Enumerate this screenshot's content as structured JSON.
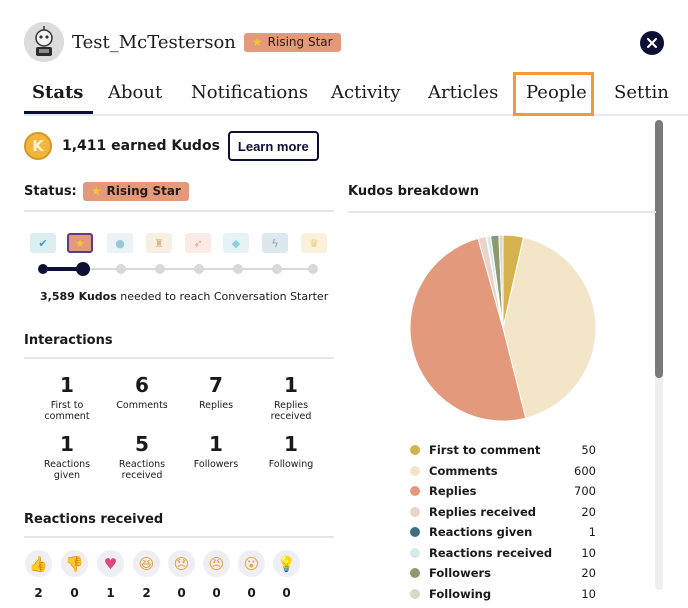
{
  "header": {
    "username": "Test_McTesterson",
    "rank_badge": "Rising Star"
  },
  "tabs": [
    {
      "label": "Stats",
      "active": true
    },
    {
      "label": "About"
    },
    {
      "label": "Notifications"
    },
    {
      "label": "Activity"
    },
    {
      "label": "Articles"
    },
    {
      "label": "People",
      "highlighted": true
    },
    {
      "label": "Settin"
    }
  ],
  "kudos": {
    "coin_letter": "K",
    "earned_text": "1,411 earned Kudos",
    "learn_more": "Learn more"
  },
  "status": {
    "label": "Status:",
    "badge": "Rising Star",
    "needed_count": "3,589 Kudos",
    "needed_rest": " needed to reach Conversation Starter",
    "progress_fraction": 0.167,
    "rank_icon_names": [
      "check-badge-icon",
      "star-badge-icon",
      "balloon-icon",
      "trophy-icon",
      "rocket-icon",
      "diamond-icon",
      "lightning-icon",
      "crown-icon"
    ]
  },
  "interactions": {
    "title": "Interactions",
    "stats": [
      {
        "num": "1",
        "label": "First to comment"
      },
      {
        "num": "6",
        "label": "Comments"
      },
      {
        "num": "7",
        "label": "Replies"
      },
      {
        "num": "1",
        "label": "Replies received"
      },
      {
        "num": "1",
        "label": "Reactions given"
      },
      {
        "num": "5",
        "label": "Reactions received"
      },
      {
        "num": "1",
        "label": "Followers"
      },
      {
        "num": "1",
        "label": "Following"
      }
    ]
  },
  "reactions": {
    "title": "Reactions received",
    "items": [
      {
        "icon": "thumbs-up-icon",
        "count": "2"
      },
      {
        "icon": "thumbs-down-icon",
        "count": "0"
      },
      {
        "icon": "heart-icon",
        "count": "1"
      },
      {
        "icon": "laughing-icon",
        "count": "2"
      },
      {
        "icon": "sad-icon",
        "count": "0"
      },
      {
        "icon": "angry-icon",
        "count": "0"
      },
      {
        "icon": "surprised-icon",
        "count": "0"
      },
      {
        "icon": "lightbulb-icon",
        "count": "0"
      }
    ]
  },
  "breakdown": {
    "title": "Kudos breakdown"
  },
  "chart_data": {
    "type": "pie",
    "title": "Kudos breakdown",
    "categories": [
      "First to comment",
      "Comments",
      "Replies",
      "Replies received",
      "Reactions given",
      "Reactions received",
      "Followers",
      "Following"
    ],
    "values": [
      50,
      600,
      700,
      20,
      1,
      10,
      20,
      10
    ],
    "colors": [
      "#d6b24e",
      "#f3e6c8",
      "#e39a7c",
      "#ead3c8",
      "#3f6e80",
      "#d3ebeb",
      "#8c9a72",
      "#dcd7c8"
    ]
  },
  "colors": {
    "accent_navy": "#0d1032",
    "badge_salmon": "#e39a7c",
    "highlight_orange": "#f29a3a",
    "coin_gold": "#f3b63c"
  },
  "scroll": {
    "position_fraction": 0.0
  }
}
